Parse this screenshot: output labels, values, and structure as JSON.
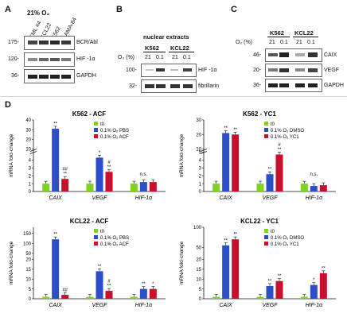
{
  "panels": {
    "A": {
      "letter": "A",
      "condition": "21% O₂",
      "lanes": [
        "CML #4",
        "KCL22",
        "K562",
        "LAMA-84"
      ],
      "proteins": [
        "BCR/Abl",
        "HIF -1α",
        "GAPDH"
      ],
      "mw": [
        "175-",
        "120-",
        "36-"
      ]
    },
    "B": {
      "letter": "B",
      "title": "nuclear extracts",
      "cells": [
        "K562",
        "KCL22"
      ],
      "o2_label": "O₂ (%)",
      "o2_values": [
        "21",
        "0.1",
        "21",
        "0.1"
      ],
      "proteins": [
        "HIF -1α",
        "fibrillarin"
      ],
      "mw": [
        "100-",
        "32-"
      ]
    },
    "C": {
      "letter": "C",
      "cells": [
        "K562",
        "KCL22"
      ],
      "o2_label": "O₂ (%)",
      "o2_values": [
        "21",
        "0.1",
        "21",
        "0.1"
      ],
      "proteins": [
        "CAIX",
        "VEGF",
        "GAPDH"
      ],
      "mw": [
        "46-",
        "20-",
        "36-"
      ]
    },
    "D": {
      "letter": "D",
      "ylabel": "mRNA fold-change",
      "colors": {
        "t0": "#7ed321",
        "blue": "#2b4fc7",
        "red": "#c8102e"
      }
    }
  },
  "chart_data": [
    {
      "type": "bar",
      "title": "K562 - ACF",
      "ylabel": "mRNA fold-change",
      "categories": [
        "CAIX",
        "VEGF",
        "HIF-1α"
      ],
      "series": [
        {
          "name": "t0",
          "values": [
            1,
            1,
            1
          ]
        },
        {
          "name": "0.1% O₂ PBS",
          "values": [
            31,
            4.3,
            1.2
          ]
        },
        {
          "name": "0.1% O₂ ACF",
          "values": [
            1.6,
            2.5,
            1.2
          ]
        }
      ],
      "annotations": {
        "sig_blue": [
          "**",
          "*",
          ""
        ],
        "sig_red": [
          "##\n**",
          "#\n**",
          ""
        ],
        "ns": "n.s."
      },
      "broken_axis": {
        "lower": [
          0,
          5
        ],
        "upper": [
          10,
          40
        ]
      },
      "yticks_lower": [
        "0",
        "1",
        "2",
        "3",
        "4"
      ],
      "yticks_upper": [
        "10",
        "20",
        "30",
        "40"
      ]
    },
    {
      "type": "bar",
      "title": "K562 - YC1",
      "ylabel": "mRNA fold-change",
      "categories": [
        "CAIX",
        "VEGF",
        "HIF-1α"
      ],
      "series": [
        {
          "name": "t0",
          "values": [
            1,
            1,
            1
          ]
        },
        {
          "name": "0.1% O₂ DMSO",
          "values": [
            21,
            2.2,
            0.7
          ]
        },
        {
          "name": "0.1% O₂ YC1",
          "values": [
            20,
            4.7,
            0.8
          ]
        }
      ],
      "annotations": {
        "sig_blue": [
          "**",
          "**",
          ""
        ],
        "sig_red": [
          "**",
          "#\n**",
          ""
        ],
        "ns": "n.s."
      },
      "broken_axis": {
        "lower": [
          0,
          5
        ],
        "upper": [
          10,
          30
        ]
      },
      "yticks_lower": [
        "0",
        "1",
        "2",
        "3",
        "4",
        "5"
      ],
      "yticks_upper": [
        "10",
        "20",
        "30"
      ]
    },
    {
      "type": "bar",
      "title": "KCL22 - ACF",
      "ylabel": "mRNA fold-change",
      "categories": [
        "CAIX",
        "VEGF",
        "HIF-1α"
      ],
      "series": [
        {
          "name": "t0",
          "values": [
            1,
            1,
            1
          ]
        },
        {
          "name": "0.1% O₂ PBS",
          "values": [
            120,
            14,
            5
          ]
        },
        {
          "name": "0.1% O₂ ACF",
          "values": [
            2,
            4,
            5
          ]
        }
      ],
      "annotations": {
        "sig_blue": [
          "**",
          "**",
          "**"
        ],
        "sig_red": [
          "##",
          "#\n**",
          "*"
        ]
      },
      "ylim": [
        0,
        180
      ],
      "yticks": [
        "0",
        "5",
        "10",
        "15",
        "20",
        "50",
        "100",
        "150"
      ]
    },
    {
      "type": "bar",
      "title": "KCL22 - YC1",
      "ylabel": "mRNA fold-change",
      "categories": [
        "CAIX",
        "VEGF",
        "HIF-1α"
      ],
      "series": [
        {
          "name": "t0",
          "values": [
            1,
            1,
            1
          ]
        },
        {
          "name": "0.1% O₂ DMSO",
          "values": [
            55,
            6.5,
            7
          ]
        },
        {
          "name": "0.1% O₂ YC1",
          "values": [
            70,
            9,
            13
          ]
        }
      ],
      "annotations": {
        "sig_blue": [
          "**",
          "**",
          "*"
        ],
        "sig_red": [
          "**",
          "**",
          "**"
        ]
      },
      "ylim": [
        0,
        100
      ],
      "yticks": [
        "0",
        "5",
        "10",
        "15",
        "20",
        "50",
        "100"
      ]
    }
  ]
}
